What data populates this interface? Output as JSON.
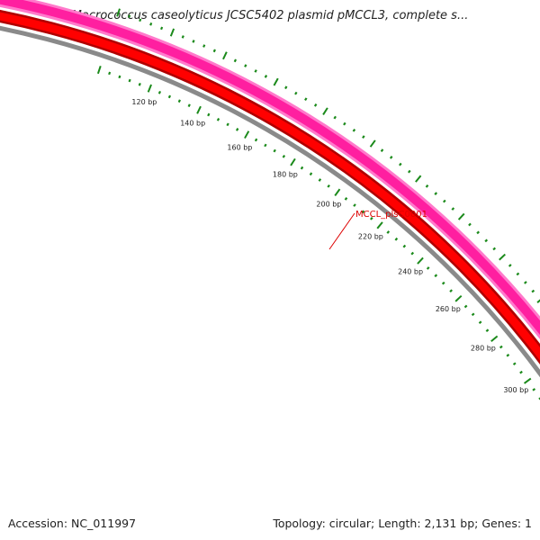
{
  "title": "Macrococcus caseolyticus JCSC5402 plasmid pMCCL3, complete s...",
  "footer": {
    "accession": "Accession: NC_011997",
    "summary": "Topology: circular; Length: 2,131 bp; Genes: 1"
  },
  "map": {
    "ticks": [
      {
        "bp": 120,
        "label": "120 bp"
      },
      {
        "bp": 140,
        "label": "140 bp"
      },
      {
        "bp": 160,
        "label": "160 bp"
      },
      {
        "bp": 180,
        "label": "180 bp"
      },
      {
        "bp": 200,
        "label": "200 bp"
      },
      {
        "bp": 220,
        "label": "220 bp"
      },
      {
        "bp": 240,
        "label": "240 bp"
      },
      {
        "bp": 260,
        "label": "260 bp"
      },
      {
        "bp": 280,
        "label": "280 bp"
      },
      {
        "bp": 300,
        "label": "300 bp"
      }
    ],
    "gene": {
      "label": "MCCL_plsC0001"
    },
    "colors": {
      "gene": "#ff1fa0",
      "gene_edge": "#ff7acb",
      "cds": "#ff0000",
      "cds_edge": "#b00000",
      "backbone": "#8a8a8a",
      "ticks": "#1b8a1b",
      "gene_label": "#dd0000"
    }
  }
}
